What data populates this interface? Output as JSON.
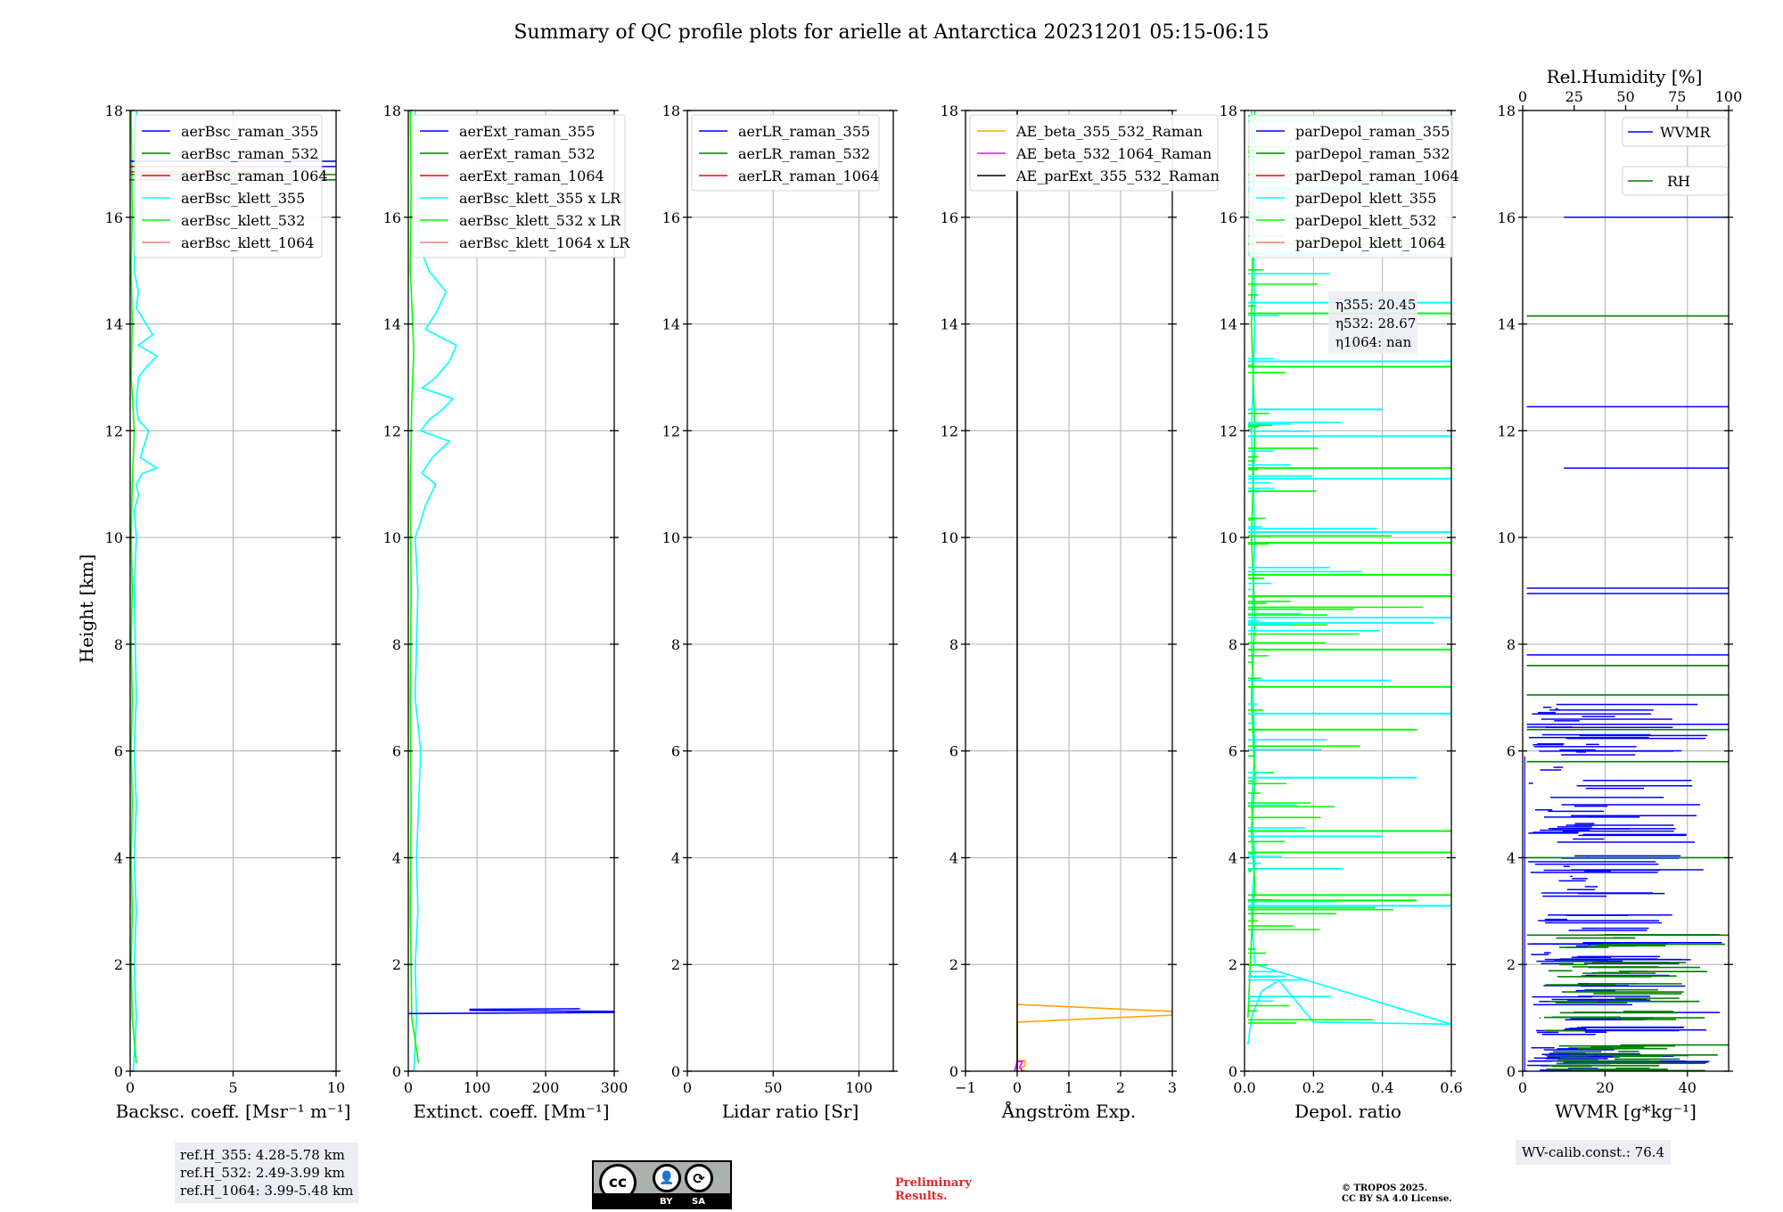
{
  "title": "Summary of QC profile plots for arielle at Antarctica 20231201 05:15-06:15",
  "ylabel": "Height [km]",
  "ref_info": [
    "ref.H_355: 4.28-5.78 km",
    "ref.H_532: 2.49-3.99 km",
    "ref.H_1064: 3.99-5.48 km"
  ],
  "wv_calib": "WV-calib.const.: 76.4",
  "eta": {
    "l355": "η355: 20.45",
    "l532": "η532: 28.67",
    "l1064": "η1064: nan"
  },
  "license": {
    "cc": "cc",
    "by": "BY",
    "sa": "SA"
  },
  "preliminary": [
    "Preliminary",
    "Results."
  ],
  "tropos": [
    "© TROPOS 2025.",
    "CC BY SA 4.0 License."
  ],
  "colors": {
    "blue": "#0000ff",
    "green": "#008000",
    "red": "#ff0000",
    "cyan": "#00ffff",
    "lime": "#00ff00",
    "salmon": "#f08080",
    "orange": "#ffa500",
    "magenta": "#ff00ff",
    "black": "#000000"
  },
  "chart_data": [
    {
      "type": "line",
      "name": "backscatter",
      "xlabel": "Backsc. coeff. [Msr⁻¹ m⁻¹]",
      "ylabel": "Height [km]",
      "xlim": [
        0,
        10
      ],
      "ylim": [
        0,
        18
      ],
      "xticks": [
        0,
        5,
        10
      ],
      "yticks": [
        0,
        2,
        4,
        6,
        8,
        10,
        12,
        14,
        16,
        18
      ],
      "legend": [
        "aerBsc_raman_355",
        "aerBsc_raman_532",
        "aerBsc_raman_1064",
        "aerBsc_klett_355",
        "aerBsc_klett_532",
        "aerBsc_klett_1064"
      ],
      "legend_colors": [
        "#0000ff",
        "#008000",
        "#ff0000",
        "#00ffff",
        "#00ff00",
        "#f08080"
      ],
      "series": [
        {
          "name": "aerBsc_klett_355",
          "color": "#00ffff",
          "x": [
            0.15,
            0.3,
            0.2,
            0.3,
            0.2,
            0.3,
            0.2,
            0.3,
            0.25,
            0.2,
            0.3,
            0.2,
            0.4,
            0.3,
            0.6,
            1.3,
            0.5,
            0.9,
            0.4,
            0.3,
            0.4,
            0.8,
            1.3,
            0.4,
            1.1,
            0.3,
            0.4,
            0.2,
            0.3
          ],
          "y": [
            0,
            1,
            2,
            3,
            4,
            5,
            6,
            7,
            8,
            9,
            10,
            10.5,
            10.8,
            11.0,
            11.2,
            11.3,
            11.5,
            12.0,
            12.2,
            12.5,
            13.0,
            13.2,
            13.4,
            13.6,
            13.8,
            14.3,
            14.6,
            15,
            18
          ]
        },
        {
          "name": "aerBsc_klett_532",
          "color": "#00ff00",
          "x": [
            0.3,
            0.1,
            0.05,
            0.1,
            0.05,
            0.1,
            0.05,
            0.1,
            0.05,
            0.1,
            0.05,
            0.1,
            0.2,
            0.05,
            0.1,
            0.05,
            0.1,
            0.05
          ],
          "y": [
            0.15,
            1,
            2,
            3,
            4,
            5,
            6,
            7,
            8,
            9,
            10,
            11,
            12,
            13,
            14,
            15,
            16,
            18
          ]
        },
        {
          "name": "aerBsc_raman_355",
          "color": "#0000ff",
          "x": [
            0,
            10.2,
            10.2,
            0
          ],
          "y": [
            17.05,
            17.05,
            16.95,
            16.95
          ]
        },
        {
          "name": "aerBsc_raman_532",
          "color": "#008000",
          "x": [
            0,
            10.2,
            10.2,
            0
          ],
          "y": [
            16.8,
            16.8,
            16.7,
            16.7
          ]
        },
        {
          "name": "aerBsc_raman_1064",
          "color": "#ff0000",
          "x": [
            0,
            6,
            6,
            0
          ],
          "y": [
            16.95,
            16.95,
            16.85,
            16.85
          ]
        }
      ]
    },
    {
      "type": "line",
      "name": "extinction",
      "xlabel": "Extinct. coeff. [Mm⁻¹]",
      "xlim": [
        0,
        300
      ],
      "ylim": [
        0,
        18
      ],
      "xticks": [
        0,
        100,
        200,
        300
      ],
      "yticks": [
        0,
        2,
        4,
        6,
        8,
        10,
        12,
        14,
        16,
        18
      ],
      "legend": [
        "aerExt_raman_355",
        "aerExt_raman_532",
        "aerExt_raman_1064",
        "aerBsc_klett_355 x LR",
        "aerBsc_klett_532 x LR",
        "aerBsc_klett_1064 x LR"
      ],
      "legend_colors": [
        "#0000ff",
        "#008000",
        "#ff0000",
        "#00ffff",
        "#00ff00",
        "#f08080"
      ],
      "series": [
        {
          "name": "aerBsc_klett_355 x LR",
          "color": "#00ffff",
          "x": [
            8,
            12,
            10,
            14,
            12,
            18,
            10,
            12,
            14,
            10,
            18,
            25,
            40,
            20,
            35,
            60,
            18,
            30,
            50,
            65,
            20,
            40,
            60,
            70,
            25,
            40,
            55,
            30,
            15,
            10
          ],
          "y": [
            0,
            1,
            2,
            3,
            4,
            6,
            7,
            8,
            9,
            10,
            10.3,
            10.6,
            11.0,
            11.2,
            11.5,
            11.8,
            12.0,
            12.2,
            12.4,
            12.6,
            12.8,
            13.0,
            13.3,
            13.6,
            13.9,
            14.2,
            14.6,
            15.0,
            15.5,
            18
          ]
        },
        {
          "name": "aerBsc_klett_532 x LR",
          "color": "#00ff00",
          "x": [
            15,
            5,
            3,
            4,
            3,
            4,
            3,
            5,
            8,
            3,
            4,
            3
          ],
          "y": [
            0.15,
            1,
            3,
            5,
            7,
            9,
            11,
            12.5,
            13.5,
            15,
            16.5,
            18
          ]
        },
        {
          "name": "aerExt_raman_355",
          "color": "#0000ff",
          "x": [
            0,
            300,
            300,
            90,
            90,
            250
          ],
          "y": [
            1.08,
            1.1,
            1.12,
            1.14,
            1.16,
            1.17
          ]
        }
      ]
    },
    {
      "type": "line",
      "name": "lidar ratio",
      "xlabel": "Lidar ratio [Sr]",
      "xlim": [
        0,
        120
      ],
      "ylim": [
        0,
        18
      ],
      "xticks": [
        0,
        50,
        100
      ],
      "yticks": [
        0,
        2,
        4,
        6,
        8,
        10,
        12,
        14,
        16,
        18
      ],
      "legend": [
        "aerLR_raman_355",
        "aerLR_raman_532",
        "aerLR_raman_1064"
      ],
      "legend_colors": [
        "#0000ff",
        "#008000",
        "#ff0000"
      ],
      "series": []
    },
    {
      "type": "line",
      "name": "angstrom",
      "xlabel": "Ångström Exp.",
      "xlim": [
        -1,
        3
      ],
      "ylim": [
        0,
        18
      ],
      "xticks": [
        -1,
        0,
        1,
        2,
        3
      ],
      "yticks": [
        0,
        2,
        4,
        6,
        8,
        10,
        12,
        14,
        16,
        18
      ],
      "legend": [
        "AE_beta_355_532_Raman",
        "AE_beta_532_1064_Raman",
        "AE_parExt_355_532_Raman"
      ],
      "legend_colors": [
        "#ffa500",
        "#ff00ff",
        "#000000"
      ],
      "series": [
        {
          "name": "AE_beta_355_532_Raman",
          "color": "#ffa500",
          "x": [
            0,
            3,
            3,
            0,
            0,
            0.15,
            0.15,
            0.05,
            0.1,
            0.2
          ],
          "y": [
            1.25,
            1.12,
            1.05,
            0.92,
            0.2,
            0.2,
            0.1,
            0.05,
            0.02,
            0.0
          ]
        },
        {
          "name": "AE_beta_532_1064_Raman",
          "color": "#ff00ff",
          "x": [
            -0.05,
            0.0,
            0.1,
            0.05,
            0.1
          ],
          "y": [
            0.0,
            0.18,
            0.18,
            0.08,
            0.0
          ]
        },
        {
          "name": "AE_parExt_355_532_Raman",
          "color": "#000000",
          "x": [
            0,
            0
          ],
          "y": [
            0,
            18
          ]
        }
      ]
    },
    {
      "type": "line",
      "name": "depolarization",
      "xlabel": "Depol. ratio",
      "xlim": [
        0,
        0.6
      ],
      "ylim": [
        0,
        18
      ],
      "xticks": [
        0.0,
        0.2,
        0.4,
        0.6
      ],
      "yticks": [
        0,
        2,
        4,
        6,
        8,
        10,
        12,
        14,
        16,
        18
      ],
      "legend": [
        "parDepol_raman_355",
        "parDepol_raman_532",
        "parDepol_raman_1064",
        "parDepol_klett_355",
        "parDepol_klett_532",
        "parDepol_klett_1064"
      ],
      "legend_colors": [
        "#0000ff",
        "#008000",
        "#ff0000",
        "#00ffff",
        "#00ff00",
        "#f08080"
      ],
      "series": [
        {
          "name": "parDepol_klett_355",
          "color": "#00ffff",
          "x": [
            0.01,
            0.02,
            0.05,
            0.1,
            0.2,
            0.6,
            0.03,
            0.02,
            0.03,
            0.02,
            0.03,
            0.02,
            0.03,
            0.02,
            0.03,
            0.02
          ],
          "y": [
            0.5,
            1.0,
            1.5,
            1.7,
            0.92,
            0.88,
            2.0,
            3,
            4,
            5,
            6,
            8,
            10,
            12,
            14,
            18
          ]
        },
        {
          "name": "parDepol_klett_532",
          "color": "#00ff00",
          "x": [
            0.01,
            0.02,
            0.03,
            0.02,
            0.03,
            0.02,
            0.03,
            0.02,
            0.03,
            0.02,
            0.03
          ],
          "y": [
            1.0,
            2.5,
            3.5,
            4.5,
            5.5,
            7,
            8.5,
            10,
            12,
            14,
            18
          ]
        },
        {
          "name": "spikes_klett_355_depths",
          "color": "#00ffff",
          "x": [
            0.6,
            0.4,
            0.5,
            0.6,
            0.55,
            0.6,
            0.6,
            0.6,
            0.6,
            0.6,
            0.4,
            0.6,
            0.6,
            0.6,
            0.5,
            0.6
          ],
          "y": [
            3.1,
            4.4,
            5.5,
            6.7,
            8.4,
            8.5,
            9.9,
            10.1,
            11.1,
            11.9,
            12.4,
            13.3,
            14.4,
            15.3,
            16.5,
            17.8
          ]
        },
        {
          "name": "spikes_klett_532_depths",
          "color": "#00ff00",
          "x": [
            0.5,
            0.6,
            0.6,
            0.6,
            0.5,
            0.6,
            0.6,
            0.6,
            0.6,
            0.6,
            0.6,
            0.6,
            0.6,
            0.55,
            0.6,
            0.6
          ],
          "y": [
            3.2,
            3.3,
            4.1,
            4.5,
            6.4,
            7.2,
            7.9,
            8.9,
            9.3,
            9.9,
            11.3,
            13.2,
            14.2,
            15.5,
            16.8,
            17.9
          ]
        }
      ]
    },
    {
      "type": "line",
      "name": "water vapor",
      "xlabel": "WVMR [g*kg⁻¹]",
      "x2label": "Rel.Humidity [%]",
      "xlim": [
        0,
        50
      ],
      "x2lim": [
        0,
        100
      ],
      "ylim": [
        0,
        18
      ],
      "xticks": [
        0,
        20,
        40
      ],
      "x2ticks": [
        0,
        25,
        50,
        75,
        100
      ],
      "yticks": [
        0,
        2,
        4,
        6,
        8,
        10,
        12,
        14,
        16,
        18
      ],
      "legend": [
        "WVMR",
        "RH"
      ],
      "legend_colors": [
        "#0000ff",
        "#008000"
      ],
      "series": [
        {
          "name": "WVMR",
          "color": "#0000ff"
        },
        {
          "name": "RH",
          "color": "#008000"
        }
      ]
    }
  ]
}
